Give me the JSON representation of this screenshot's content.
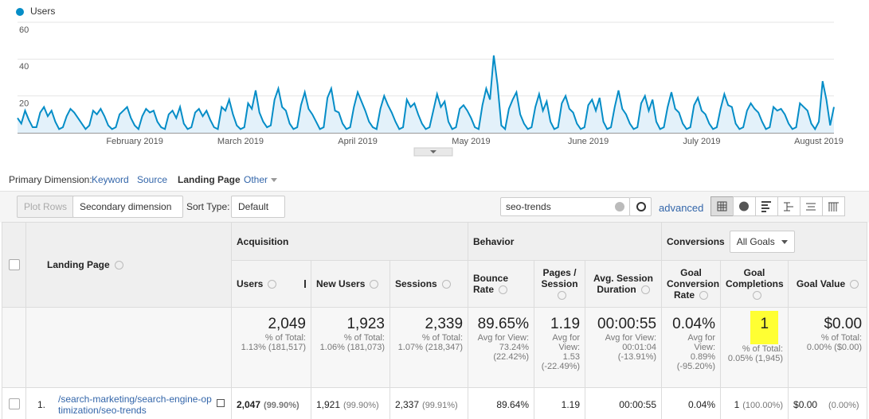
{
  "chart_data": {
    "type": "line",
    "series": [
      {
        "name": "Users",
        "color": "#058dc7",
        "fill": "#e3f1fa",
        "values": [
          8,
          5,
          12,
          7,
          3,
          3,
          11,
          14,
          9,
          12,
          6,
          2,
          3,
          9,
          13,
          11,
          8,
          5,
          2,
          4,
          12,
          10,
          13,
          9,
          4,
          2,
          3,
          10,
          12,
          14,
          8,
          4,
          2,
          9,
          13,
          11,
          12,
          6,
          3,
          2,
          10,
          12,
          8,
          14,
          5,
          2,
          3,
          11,
          13,
          9,
          12,
          7,
          3,
          2,
          14,
          12,
          18,
          10,
          4,
          2,
          3,
          16,
          13,
          23,
          11,
          6,
          3,
          4,
          18,
          24,
          14,
          12,
          5,
          2,
          3,
          15,
          22,
          13,
          10,
          6,
          2,
          3,
          19,
          24,
          12,
          11,
          5,
          2,
          3,
          14,
          22,
          17,
          12,
          6,
          3,
          2,
          13,
          20,
          15,
          11,
          6,
          2,
          3,
          18,
          14,
          16,
          10,
          5,
          2,
          3,
          12,
          21,
          14,
          17,
          6,
          2,
          3,
          13,
          15,
          12,
          8,
          3,
          2,
          15,
          24,
          18,
          42,
          26,
          4,
          2,
          13,
          18,
          22,
          10,
          5,
          2,
          3,
          14,
          21,
          12,
          17,
          6,
          2,
          3,
          16,
          20,
          13,
          11,
          5,
          2,
          3,
          15,
          18,
          12,
          19,
          6,
          2,
          3,
          14,
          23,
          13,
          10,
          5,
          2,
          3,
          16,
          20,
          12,
          18,
          6,
          2,
          3,
          14,
          22,
          13,
          11,
          5,
          2,
          3,
          15,
          19,
          12,
          10,
          5,
          2,
          3,
          13,
          21,
          15,
          14,
          5,
          2,
          3,
          12,
          16,
          13,
          11,
          6,
          2,
          3,
          14,
          12,
          13,
          10,
          5,
          2,
          3,
          16,
          14,
          12,
          5,
          2,
          6,
          28,
          18,
          4,
          14
        ]
      }
    ],
    "categories": [
      null,
      null,
      null,
      null,
      null,
      null,
      null,
      null,
      null,
      null,
      null,
      null,
      null,
      null,
      null,
      null,
      null,
      null,
      null,
      null,
      null,
      null,
      null,
      null,
      null,
      null,
      null,
      null,
      null,
      null,
      null,
      "February 2019",
      null,
      null,
      null,
      null,
      null,
      null,
      null,
      null,
      null,
      null,
      null,
      null,
      null,
      null,
      null,
      null,
      null,
      null,
      null,
      null,
      null,
      null,
      null,
      null,
      null,
      null,
      null,
      "March 2019",
      null,
      null,
      null,
      null,
      null,
      null,
      null,
      null,
      null,
      null,
      null,
      null,
      null,
      null,
      null,
      null,
      null,
      null,
      null,
      null,
      null,
      null,
      null,
      null,
      null,
      null,
      null,
      null,
      null,
      null,
      "April 2019",
      null,
      null,
      null,
      null,
      null,
      null,
      null,
      null,
      null,
      null,
      null,
      null,
      null,
      null,
      null,
      null,
      null,
      null,
      null,
      null,
      null,
      null,
      null,
      null,
      null,
      null,
      null,
      null,
      null,
      "May 2019",
      null,
      null,
      null,
      null,
      null,
      null,
      null,
      null,
      null,
      null,
      null,
      null,
      null,
      null,
      null,
      null,
      null,
      null,
      null,
      null,
      null,
      null,
      null,
      null,
      null,
      null,
      null,
      null,
      null,
      null,
      "June 2019",
      null,
      null,
      null,
      null,
      null,
      null,
      null,
      null,
      null,
      null,
      null,
      null,
      null,
      null,
      null,
      null,
      null,
      null,
      null,
      null,
      null,
      null,
      null,
      null,
      null,
      null,
      null,
      null,
      null,
      "July 2019",
      null,
      null,
      null,
      null,
      null,
      null,
      null,
      null,
      null,
      null,
      null,
      null,
      null,
      null,
      null,
      null,
      null,
      null,
      null,
      null,
      null,
      null,
      null,
      null,
      null,
      null,
      null,
      null,
      null,
      null,
      "August 2019",
      null,
      null,
      null,
      null
    ],
    "ylim": [
      0,
      60
    ],
    "yticks": [
      20,
      40,
      60
    ],
    "grid": true
  },
  "nav": {
    "label": "Primary Dimension:",
    "options": [
      "Keyword",
      "Source",
      "Landing Page",
      "Other"
    ]
  },
  "toolbar": {
    "plot_rows": "Plot Rows",
    "secondary_dimension": "Secondary dimension",
    "sort_type_label": "Sort Type:",
    "sort_type": "Default",
    "search": "seo-trends",
    "advanced": "advanced"
  },
  "table": {
    "first_header": "Landing Page",
    "groups": [
      "Acquisition",
      "Behavior",
      "Conversions"
    ],
    "goal_select": "All Goals",
    "columns": [
      "Users",
      "New Users",
      "Sessions",
      "Bounce Rate",
      "Pages / Session",
      "Avg. Session Duration",
      "Goal Conversion Rate",
      "Goal Completions",
      "Goal Value"
    ],
    "totals": [
      {
        "value": "2,049",
        "note": [
          "% of Total:",
          "1.13% (181,517)"
        ]
      },
      {
        "value": "1,923",
        "note": [
          "% of Total:",
          "1.06% (181,073)"
        ]
      },
      {
        "value": "2,339",
        "note": [
          "% of Total:",
          "1.07% (218,347)"
        ]
      },
      {
        "value": "89.65%",
        "note": [
          "Avg for View:",
          "73.24%",
          "(22.42%)"
        ]
      },
      {
        "value": "1.19",
        "note": [
          "Avg for",
          "View:",
          "1.53",
          "(-22.49%)"
        ]
      },
      {
        "value": "00:00:55",
        "note": [
          "Avg for View:",
          "00:01:04",
          "(-13.91%)"
        ]
      },
      {
        "value": "0.04%",
        "note": [
          "Avg for",
          "View:",
          "0.89%",
          "(-95.20%)"
        ]
      },
      {
        "value": "1",
        "note": [
          "% of Total:",
          "0.05% (1,945)"
        ]
      },
      {
        "value": "$0.00",
        "note": [
          "% of Total:",
          "0.00% ($0.00)"
        ]
      }
    ],
    "rows": [
      {
        "index": "1.",
        "page": "/search-marketing/search-engine-optimization/seo-trends",
        "cells": [
          {
            "value": "2,047",
            "pct": "(99.90%)"
          },
          {
            "value": "1,921",
            "pct": "(99.90%)"
          },
          {
            "value": "2,337",
            "pct": "(99.91%)"
          },
          {
            "value": "89.64%"
          },
          {
            "value": "1.19"
          },
          {
            "value": "00:00:55"
          },
          {
            "value": "0.04%"
          },
          {
            "value": "1",
            "pct": "(100.00%)"
          },
          {
            "value": "$0.00",
            "pct": "(0.00%)"
          }
        ]
      }
    ]
  }
}
